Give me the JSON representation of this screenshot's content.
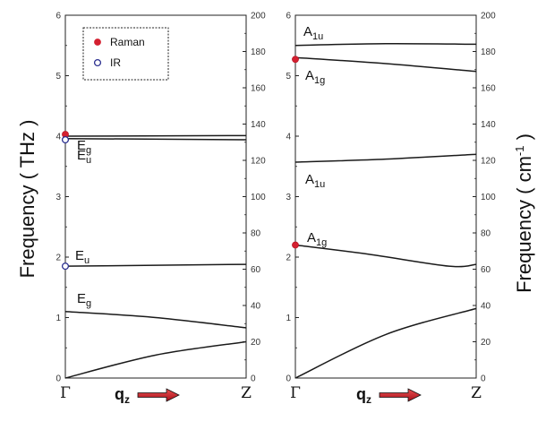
{
  "chart_data": [
    {
      "type": "line",
      "panel": "left",
      "x": [
        "Γ",
        "Z"
      ],
      "ylabel_left": "Frequency ( THz )",
      "ylim_left": [
        0,
        6
      ],
      "yticks_left": [
        "0",
        "1",
        "2",
        "3",
        "4",
        "5",
        "6"
      ],
      "ylim_right": [
        0,
        200
      ],
      "yticks_right": [
        "0",
        "20",
        "40",
        "60",
        "80",
        "100",
        "120",
        "140",
        "160",
        "180",
        "200"
      ],
      "xlabel": "qz",
      "legend": {
        "placement": "top-left",
        "entries": [
          {
            "name": "Raman",
            "marker": "filled",
            "color": "#d42030"
          },
          {
            "name": "IR",
            "marker": "open",
            "color": "#2b2f8f"
          }
        ]
      },
      "series": [
        {
          "points": [
            [
              0,
              0.0
            ],
            [
              0.5,
              0.38
            ],
            [
              1,
              0.6
            ]
          ]
        },
        {
          "label": "Eg",
          "points": [
            [
              0,
              1.1
            ],
            [
              0.5,
              1.0
            ],
            [
              1,
              0.83
            ]
          ]
        },
        {
          "label": "Eu",
          "points": [
            [
              0,
              1.85
            ],
            [
              1,
              1.88
            ]
          ]
        },
        {
          "label": "Eu",
          "points": [
            [
              0,
              3.96
            ],
            [
              1,
              3.94
            ]
          ]
        },
        {
          "label": "Eg",
          "points": [
            [
              0,
              4.0
            ],
            [
              1,
              4.01
            ]
          ]
        }
      ],
      "markers": [
        {
          "type": "raman",
          "y": 4.03
        },
        {
          "type": "ir",
          "y": 3.94
        },
        {
          "type": "ir",
          "y": 1.85
        }
      ]
    },
    {
      "type": "line",
      "panel": "right",
      "x": [
        "Γ",
        "Z"
      ],
      "ylabel_right": "Frequency ( cm-1 )",
      "ylim_left": [
        0,
        6
      ],
      "yticks_left": [
        "0",
        "1",
        "2",
        "3",
        "4",
        "5",
        "6"
      ],
      "ylim_right": [
        0,
        200
      ],
      "yticks_right": [
        "0",
        "20",
        "40",
        "60",
        "80",
        "100",
        "120",
        "140",
        "160",
        "180",
        "200"
      ],
      "xlabel": "qz",
      "series": [
        {
          "points": [
            [
              0,
              0.0
            ],
            [
              0.5,
              0.72
            ],
            [
              1,
              1.15
            ]
          ]
        },
        {
          "label": "A1g",
          "points": [
            [
              0,
              2.2
            ],
            [
              0.4,
              2.05
            ],
            [
              0.85,
              1.85
            ],
            [
              1,
              1.88
            ]
          ]
        },
        {
          "label": "A1u",
          "points": [
            [
              0,
              3.57
            ],
            [
              0.5,
              3.62
            ],
            [
              1,
              3.7
            ]
          ]
        },
        {
          "label": "A1g",
          "points": [
            [
              0,
              5.3
            ],
            [
              0.5,
              5.2
            ],
            [
              1,
              5.07
            ]
          ]
        },
        {
          "label": "A1u",
          "points": [
            [
              0,
              5.5
            ],
            [
              0.5,
              5.53
            ],
            [
              1,
              5.52
            ]
          ]
        }
      ],
      "markers": [
        {
          "type": "raman",
          "y": 5.27
        },
        {
          "type": "raman",
          "y": 2.2
        }
      ]
    }
  ]
}
